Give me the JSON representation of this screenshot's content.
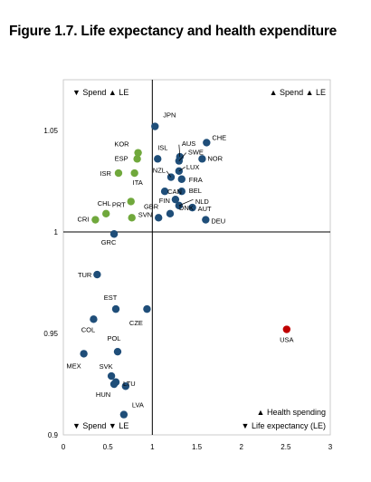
{
  "title": "Figure 1.7. Life expectancy and health expenditure",
  "chart_data": {
    "type": "scatter",
    "title": "Figure 1.7. Life expectancy and health expenditure",
    "xlabel": "",
    "ylabel": "",
    "xlim": [
      0,
      3
    ],
    "ylim": [
      0.9,
      1.075
    ],
    "x_ticks": [
      "0",
      "0.5",
      "1",
      "1.5",
      "2",
      "2.5",
      "3"
    ],
    "y_ticks": [
      "0.9",
      "0.95",
      "1",
      "1.05"
    ],
    "grid": false,
    "quadrant_lines": {
      "x": 1,
      "y": 1
    },
    "quadrant_labels": {
      "top_left": "▼ Spend ▲ LE",
      "top_right": "▲ Spend ▲ LE",
      "bottom_left": "▼ Spend ▼ LE"
    },
    "legend": {
      "position": "bottom-right",
      "entries": [
        "▲ Health spending",
        "▼ Life expectancy (LE)"
      ]
    },
    "colors": {
      "navy": "#1f4e79",
      "green": "#70a83c",
      "red": "#c00000"
    },
    "points": [
      {
        "label": "JPN",
        "x": 1.03,
        "y": 1.052,
        "color": "navy"
      },
      {
        "label": "KOR",
        "x": 0.84,
        "y": 1.039,
        "color": "green"
      },
      {
        "label": "ESP",
        "x": 0.83,
        "y": 1.036,
        "color": "green"
      },
      {
        "label": "ISL",
        "x": 1.06,
        "y": 1.036,
        "color": "navy"
      },
      {
        "label": "AUS",
        "x": 1.31,
        "y": 1.037,
        "color": "navy"
      },
      {
        "label": "SWE",
        "x": 1.3,
        "y": 1.035,
        "color": "navy"
      },
      {
        "label": "CHE",
        "x": 1.61,
        "y": 1.044,
        "color": "navy"
      },
      {
        "label": "NOR",
        "x": 1.56,
        "y": 1.036,
        "color": "navy"
      },
      {
        "label": "ISR",
        "x": 0.62,
        "y": 1.029,
        "color": "green"
      },
      {
        "label": "ITA",
        "x": 0.8,
        "y": 1.029,
        "color": "green"
      },
      {
        "label": "NZL",
        "x": 1.21,
        "y": 1.027,
        "color": "navy"
      },
      {
        "label": "LUX",
        "x": 1.3,
        "y": 1.03,
        "color": "navy"
      },
      {
        "label": "FRA",
        "x": 1.33,
        "y": 1.026,
        "color": "navy"
      },
      {
        "label": "PRT",
        "x": 0.76,
        "y": 1.015,
        "color": "green"
      },
      {
        "label": "CAN",
        "x": 1.14,
        "y": 1.02,
        "color": "navy"
      },
      {
        "label": "BEL",
        "x": 1.33,
        "y": 1.02,
        "color": "navy"
      },
      {
        "label": "FIN",
        "x": 1.26,
        "y": 1.016,
        "color": "navy"
      },
      {
        "label": "NLD",
        "x": 1.3,
        "y": 1.013,
        "color": "navy"
      },
      {
        "label": "CHL",
        "x": 0.48,
        "y": 1.009,
        "color": "green"
      },
      {
        "label": "SVN",
        "x": 0.77,
        "y": 1.007,
        "color": "green"
      },
      {
        "label": "AUT",
        "x": 1.45,
        "y": 1.012,
        "color": "navy"
      },
      {
        "label": "CRI",
        "x": 0.36,
        "y": 1.006,
        "color": "green"
      },
      {
        "label": "GBR",
        "x": 1.07,
        "y": 1.007,
        "color": "navy"
      },
      {
        "label": "DNK",
        "x": 1.2,
        "y": 1.009,
        "color": "navy"
      },
      {
        "label": "DEU",
        "x": 1.6,
        "y": 1.006,
        "color": "navy"
      },
      {
        "label": "GRC",
        "x": 0.57,
        "y": 0.999,
        "color": "navy"
      },
      {
        "label": "TUR",
        "x": 0.38,
        "y": 0.979,
        "color": "navy"
      },
      {
        "label": "EST",
        "x": 0.59,
        "y": 0.962,
        "color": "navy"
      },
      {
        "label": "CZE",
        "x": 0.94,
        "y": 0.962,
        "color": "navy"
      },
      {
        "label": "COL",
        "x": 0.34,
        "y": 0.957,
        "color": "navy"
      },
      {
        "label": "USA",
        "x": 2.51,
        "y": 0.952,
        "color": "red"
      },
      {
        "label": "POL",
        "x": 0.61,
        "y": 0.941,
        "color": "navy"
      },
      {
        "label": "MEX",
        "x": 0.23,
        "y": 0.94,
        "color": "navy"
      },
      {
        "label": "SVK",
        "x": 0.54,
        "y": 0.929,
        "color": "navy"
      },
      {
        "label": "LTU",
        "x": 0.59,
        "y": 0.926,
        "color": "navy"
      },
      {
        "label": "HUN",
        "x": 0.57,
        "y": 0.925,
        "color": "navy"
      },
      {
        "label": "LTU2",
        "x": 0.7,
        "y": 0.924,
        "color": "navy",
        "unlabeled": true
      },
      {
        "label": "LVA",
        "x": 0.68,
        "y": 0.91,
        "color": "navy"
      }
    ]
  }
}
